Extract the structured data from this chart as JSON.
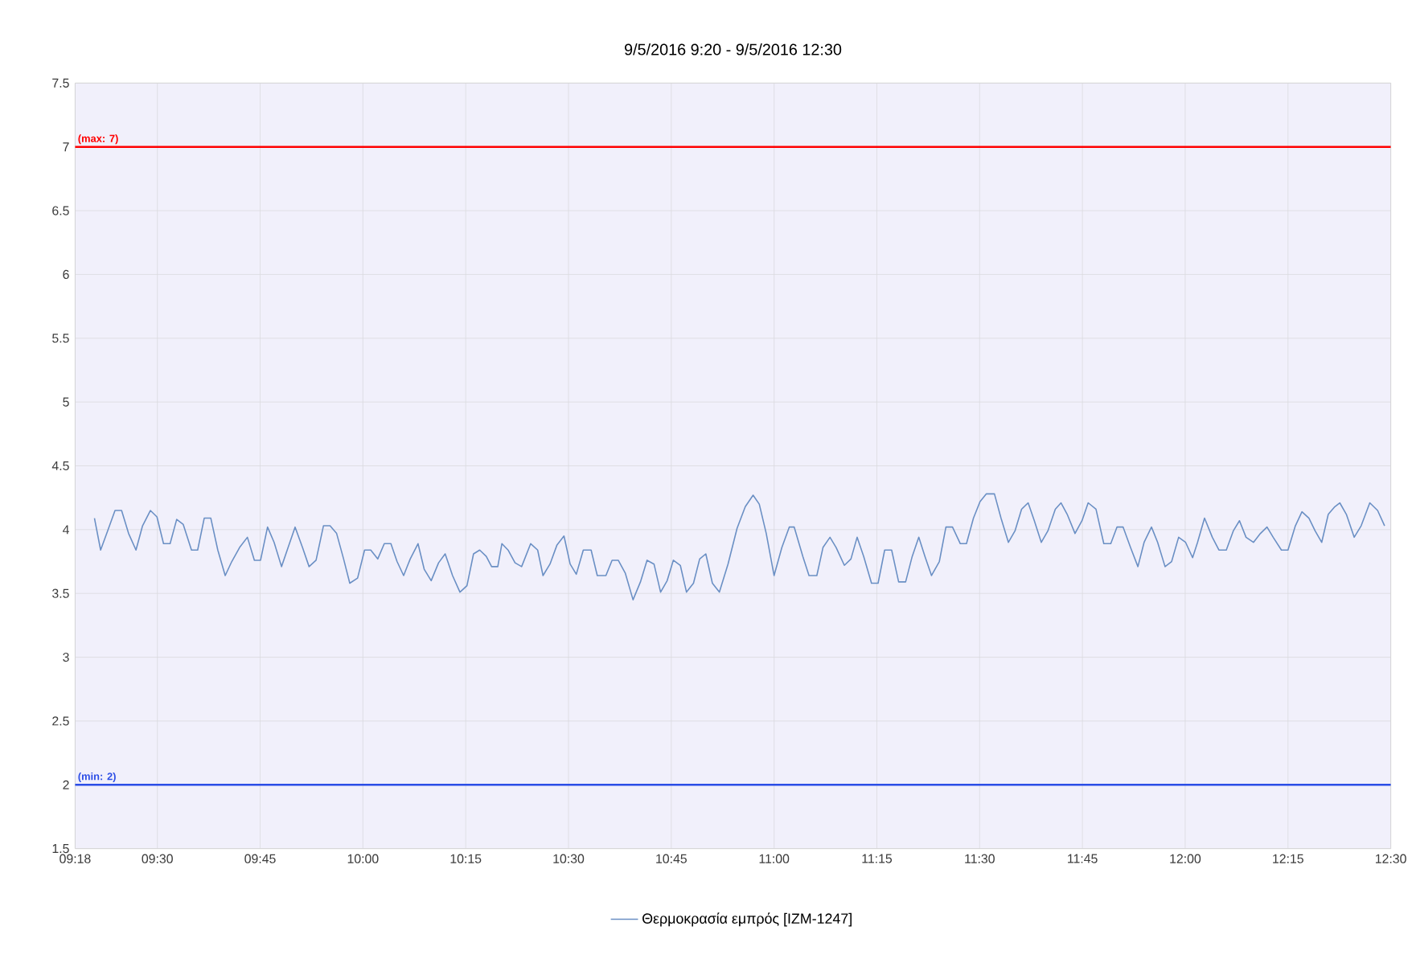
{
  "chart_data": {
    "type": "line",
    "title": "9/5/2016 9:20 - 9/5/2016 12:30",
    "xlim": [
      9.3,
      12.5
    ],
    "xticks": [
      {
        "value": 9.3,
        "label": "09:18"
      },
      {
        "value": 9.5,
        "label": "09:30"
      },
      {
        "value": 9.75,
        "label": "09:45"
      },
      {
        "value": 10,
        "label": "10:00"
      },
      {
        "value": 10.25,
        "label": "10:15"
      },
      {
        "value": 10.5,
        "label": "10:30"
      },
      {
        "value": 10.75,
        "label": "10:45"
      },
      {
        "value": 11,
        "label": "11:00"
      },
      {
        "value": 11.25,
        "label": "11:15"
      },
      {
        "value": 11.5,
        "label": "11:30"
      },
      {
        "value": 11.75,
        "label": "11:45"
      },
      {
        "value": 12,
        "label": "12:00"
      },
      {
        "value": 12.25,
        "label": "12:15"
      },
      {
        "value": 12.5,
        "label": "12:30"
      }
    ],
    "ylim": [
      1.5,
      7.5
    ],
    "yticks": [
      1.5,
      2,
      2.5,
      3,
      3.5,
      4,
      4.5,
      5,
      5.5,
      6,
      6.5,
      7,
      7.5
    ],
    "grid": true,
    "legend": "bottom",
    "ref_lines": [
      {
        "axis": "y",
        "value": 7,
        "label": "(max: 7)",
        "color": "#ff0000"
      },
      {
        "axis": "y",
        "value": 2,
        "label": "(min: 2)",
        "color": "#2b4de6"
      }
    ],
    "series": [
      {
        "name": "Θερμοκρασία εμπρός [IZM-1247]",
        "color": "#6a8fc4",
        "x": [
          9.347,
          9.362,
          9.379,
          9.397,
          9.413,
          9.43,
          9.448,
          9.464,
          9.483,
          9.499,
          9.515,
          9.531,
          9.547,
          9.563,
          9.583,
          9.598,
          9.614,
          9.63,
          9.647,
          9.665,
          9.681,
          9.7,
          9.719,
          9.736,
          9.751,
          9.768,
          9.784,
          9.802,
          9.818,
          9.835,
          9.853,
          9.869,
          9.886,
          9.904,
          9.92,
          9.936,
          9.953,
          9.968,
          9.987,
          10.004,
          10.019,
          10.036,
          10.052,
          10.068,
          10.083,
          10.099,
          10.115,
          10.134,
          10.149,
          10.166,
          10.184,
          10.2,
          10.218,
          10.236,
          10.253,
          10.269,
          10.284,
          10.3,
          10.313,
          10.328,
          10.338,
          10.353,
          10.37,
          10.386,
          10.408,
          10.425,
          10.438,
          10.455,
          10.472,
          10.489,
          10.504,
          10.519,
          10.536,
          10.555,
          10.57,
          10.591,
          10.606,
          10.621,
          10.638,
          10.657,
          10.675,
          10.691,
          10.708,
          10.724,
          10.74,
          10.755,
          10.772,
          10.787,
          10.804,
          10.819,
          10.834,
          10.85,
          10.867,
          10.888,
          10.91,
          10.93,
          10.949,
          10.964,
          10.981,
          11.0,
          11.019,
          11.037,
          11.049,
          11.07,
          11.085,
          11.104,
          11.119,
          11.136,
          11.151,
          11.171,
          11.187,
          11.202,
          11.218,
          11.237,
          11.253,
          11.269,
          11.286,
          11.303,
          11.32,
          11.336,
          11.352,
          11.367,
          11.383,
          11.402,
          11.418,
          11.434,
          11.453,
          11.468,
          11.485,
          11.501,
          11.516,
          11.536,
          11.552,
          11.57,
          11.586,
          11.602,
          11.618,
          11.633,
          11.65,
          11.666,
          11.684,
          11.698,
          11.713,
          11.732,
          11.749,
          11.764,
          11.783,
          11.802,
          11.819,
          11.834,
          11.849,
          11.867,
          11.885,
          11.9,
          11.918,
          11.933,
          11.951,
          11.967,
          11.984,
          12.001,
          12.018,
          12.03,
          12.047,
          12.066,
          12.082,
          12.1,
          12.117,
          12.132,
          12.148,
          12.166,
          12.183,
          12.199,
          12.214,
          12.234,
          12.25,
          12.268,
          12.284,
          12.301,
          12.316,
          12.332,
          12.348,
          12.364,
          12.376,
          12.392,
          12.411,
          12.428,
          12.449,
          12.468,
          12.485
        ],
        "values": [
          4.09,
          3.84,
          3.99,
          4.15,
          4.15,
          3.97,
          3.84,
          4.03,
          4.15,
          4.1,
          3.89,
          3.89,
          4.08,
          4.04,
          3.84,
          3.84,
          4.09,
          4.09,
          3.84,
          3.64,
          3.75,
          3.86,
          3.94,
          3.76,
          3.76,
          4.02,
          3.9,
          3.71,
          3.86,
          4.02,
          3.86,
          3.71,
          3.76,
          4.03,
          4.03,
          3.97,
          3.77,
          3.58,
          3.62,
          3.84,
          3.84,
          3.77,
          3.89,
          3.89,
          3.75,
          3.64,
          3.77,
          3.89,
          3.69,
          3.6,
          3.74,
          3.81,
          3.64,
          3.51,
          3.56,
          3.81,
          3.84,
          3.79,
          3.71,
          3.71,
          3.89,
          3.84,
          3.74,
          3.71,
          3.89,
          3.84,
          3.64,
          3.73,
          3.88,
          3.95,
          3.73,
          3.65,
          3.84,
          3.84,
          3.64,
          3.64,
          3.76,
          3.76,
          3.66,
          3.45,
          3.59,
          3.76,
          3.73,
          3.51,
          3.6,
          3.76,
          3.72,
          3.51,
          3.58,
          3.77,
          3.81,
          3.58,
          3.51,
          3.73,
          4.01,
          4.18,
          4.27,
          4.2,
          3.97,
          3.64,
          3.86,
          4.02,
          4.02,
          3.79,
          3.64,
          3.64,
          3.86,
          3.94,
          3.86,
          3.72,
          3.77,
          3.94,
          3.79,
          3.58,
          3.58,
          3.84,
          3.84,
          3.59,
          3.59,
          3.79,
          3.94,
          3.79,
          3.64,
          3.75,
          4.02,
          4.02,
          3.89,
          3.89,
          4.09,
          4.22,
          4.28,
          4.28,
          4.09,
          3.9,
          3.99,
          4.16,
          4.21,
          4.07,
          3.9,
          3.99,
          4.16,
          4.21,
          4.12,
          3.97,
          4.07,
          4.21,
          4.16,
          3.89,
          3.89,
          4.02,
          4.02,
          3.86,
          3.71,
          3.9,
          4.02,
          3.9,
          3.71,
          3.75,
          3.94,
          3.9,
          3.78,
          3.9,
          4.09,
          3.94,
          3.84,
          3.84,
          3.99,
          4.07,
          3.94,
          3.9,
          3.97,
          4.02,
          3.94,
          3.84,
          3.84,
          4.03,
          4.14,
          4.09,
          3.99,
          3.9,
          4.12,
          4.18,
          4.21,
          4.12,
          3.94,
          4.03,
          4.21,
          4.15,
          4.03
        ]
      }
    ]
  }
}
